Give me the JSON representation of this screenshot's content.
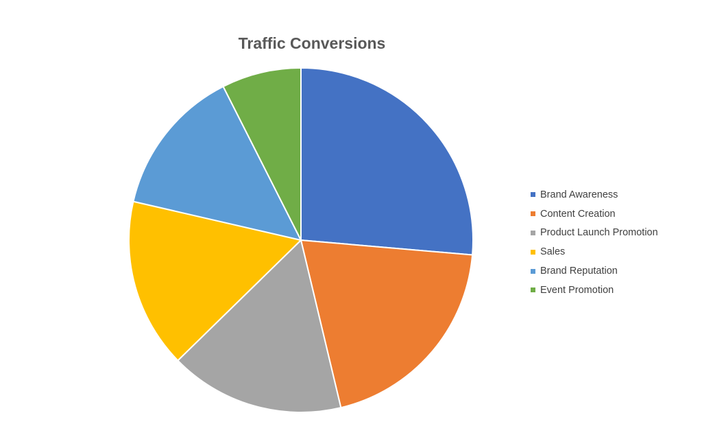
{
  "chart_data": {
    "type": "pie",
    "title": "Traffic Conversions",
    "categories": [
      "Brand Awareness",
      "Content Creation",
      "Product Launch Promotion",
      "Sales",
      "Brand Reputation",
      "Event Promotion"
    ],
    "values": [
      26.5,
      20,
      16.5,
      16,
      14,
      7.5
    ],
    "colors": [
      "#4472C4",
      "#ED7D31",
      "#A5A5A5",
      "#FFC000",
      "#5B9BD5",
      "#70AD47"
    ],
    "legend_position": "right",
    "start_angle": "12 o'clock",
    "direction": "clockwise"
  }
}
